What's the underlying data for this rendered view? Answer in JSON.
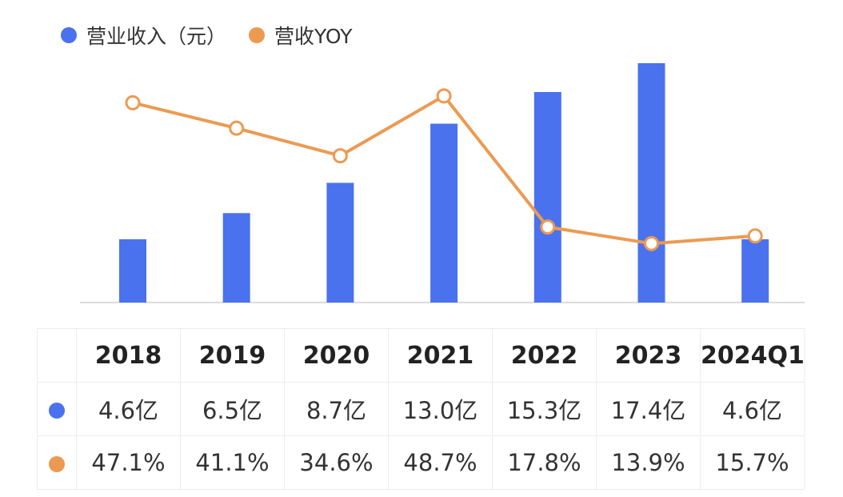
{
  "legend": {
    "revenue_label": "营业收入（元）",
    "yoy_label": "营收YOY"
  },
  "colors": {
    "bar": "#4a72ee",
    "line": "#ec9a52"
  },
  "chart_data": {
    "type": "bar",
    "categories": [
      "2018",
      "2019",
      "2020",
      "2021",
      "2022",
      "2023",
      "2024Q1"
    ],
    "series": [
      {
        "name": "营业收入（元）",
        "type": "bar",
        "values": [
          4.6,
          6.5,
          8.7,
          13.0,
          15.3,
          17.4,
          4.6
        ],
        "unit": "亿"
      },
      {
        "name": "营收YOY",
        "type": "line",
        "values": [
          47.1,
          41.1,
          34.6,
          48.7,
          17.8,
          13.9,
          15.7
        ],
        "unit": "%"
      }
    ],
    "revenue_ylim": [
      0,
      18.5
    ],
    "yoy_ylim": [
      0,
      60
    ],
    "grid": false
  },
  "table": {
    "header": [
      "2018",
      "2019",
      "2020",
      "2021",
      "2022",
      "2023",
      "2024Q1"
    ],
    "revenue_row": [
      "4.6亿",
      "6.5亿",
      "8.7亿",
      "13.0亿",
      "15.3亿",
      "17.4亿",
      "4.6亿"
    ],
    "yoy_row": [
      "47.1%",
      "41.1%",
      "34.6%",
      "48.7%",
      "17.8%",
      "13.9%",
      "15.7%"
    ]
  }
}
